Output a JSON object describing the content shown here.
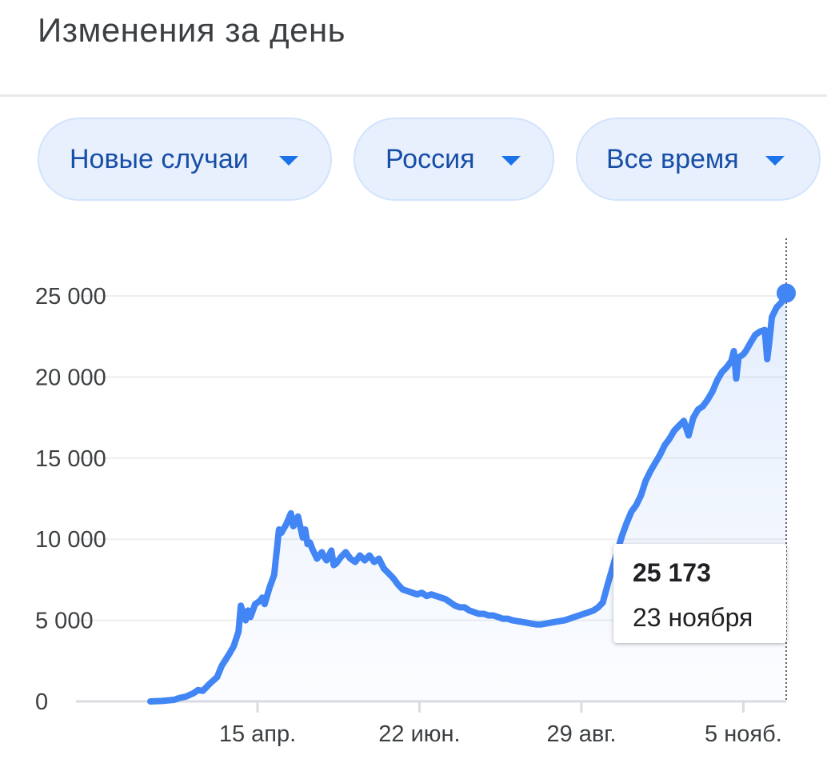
{
  "header": {
    "title": "Изменения за день"
  },
  "filters": {
    "metric": "Новые случаи",
    "region": "Россия",
    "period": "Все время"
  },
  "tooltip": {
    "value": "25 173",
    "date": "23 ноября"
  },
  "colors": {
    "line": "#4285f4",
    "accent": "#1a73e8",
    "chip_bg": "#e8f0fe"
  },
  "icons": {
    "dropdown": "caret-down-icon"
  },
  "chart_data": {
    "type": "line",
    "title": "",
    "xlabel": "",
    "ylabel": "",
    "ylim": [
      0,
      25000
    ],
    "y_ticks": [
      0,
      5000,
      10000,
      15000,
      20000,
      25000
    ],
    "y_tick_labels": [
      "0",
      "5 000",
      "10 000",
      "15 000",
      "20 000",
      "25 000"
    ],
    "x_ticks": [
      {
        "day": 45,
        "label": "15 апр."
      },
      {
        "day": 113,
        "label": "22 июн."
      },
      {
        "day": 181,
        "label": "29 авг."
      },
      {
        "day": 249,
        "label": "5 нояб."
      }
    ],
    "x_range": [
      0,
      267
    ],
    "grid": true,
    "series": [
      {
        "points": [
          [
            0,
            0
          ],
          [
            5,
            30
          ],
          [
            10,
            100
          ],
          [
            12,
            200
          ],
          [
            15,
            300
          ],
          [
            18,
            500
          ],
          [
            20,
            700
          ],
          [
            22,
            650
          ],
          [
            25,
            1100
          ],
          [
            28,
            1500
          ],
          [
            30,
            2200
          ],
          [
            33,
            2900
          ],
          [
            35,
            3400
          ],
          [
            37,
            4300
          ],
          [
            38,
            5900
          ],
          [
            40,
            5000
          ],
          [
            41,
            5600
          ],
          [
            42,
            5200
          ],
          [
            44,
            6000
          ],
          [
            46,
            6200
          ],
          [
            47,
            6400
          ],
          [
            48,
            6000
          ],
          [
            50,
            7000
          ],
          [
            52,
            7800
          ],
          [
            54,
            10600
          ],
          [
            55,
            10400
          ],
          [
            57,
            10900
          ],
          [
            59,
            11600
          ],
          [
            60,
            10800
          ],
          [
            61,
            11000
          ],
          [
            62,
            11400
          ],
          [
            64,
            10100
          ],
          [
            65,
            10600
          ],
          [
            66,
            9700
          ],
          [
            67,
            9800
          ],
          [
            68,
            9400
          ],
          [
            70,
            8800
          ],
          [
            72,
            9200
          ],
          [
            73,
            8900
          ],
          [
            74,
            8700
          ],
          [
            76,
            9300
          ],
          [
            77,
            8400
          ],
          [
            78,
            8500
          ],
          [
            80,
            8900
          ],
          [
            82,
            9200
          ],
          [
            84,
            8800
          ],
          [
            86,
            8600
          ],
          [
            88,
            9000
          ],
          [
            90,
            8700
          ],
          [
            92,
            9000
          ],
          [
            94,
            8600
          ],
          [
            96,
            8800
          ],
          [
            98,
            8200
          ],
          [
            100,
            7900
          ],
          [
            102,
            7600
          ],
          [
            104,
            7200
          ],
          [
            106,
            6900
          ],
          [
            108,
            6800
          ],
          [
            110,
            6700
          ],
          [
            112,
            6600
          ],
          [
            114,
            6700
          ],
          [
            116,
            6500
          ],
          [
            118,
            6600
          ],
          [
            120,
            6500
          ],
          [
            122,
            6400
          ],
          [
            124,
            6300
          ],
          [
            126,
            6100
          ],
          [
            128,
            5900
          ],
          [
            130,
            5800
          ],
          [
            132,
            5800
          ],
          [
            134,
            5600
          ],
          [
            136,
            5500
          ],
          [
            138,
            5400
          ],
          [
            140,
            5400
          ],
          [
            142,
            5300
          ],
          [
            144,
            5300
          ],
          [
            146,
            5200
          ],
          [
            148,
            5100
          ],
          [
            150,
            5100
          ],
          [
            152,
            5000
          ],
          [
            154,
            4950
          ],
          [
            156,
            4900
          ],
          [
            158,
            4850
          ],
          [
            160,
            4800
          ],
          [
            162,
            4750
          ],
          [
            164,
            4750
          ],
          [
            166,
            4800
          ],
          [
            168,
            4850
          ],
          [
            170,
            4900
          ],
          [
            172,
            4950
          ],
          [
            174,
            5000
          ],
          [
            176,
            5100
          ],
          [
            178,
            5200
          ],
          [
            180,
            5300
          ],
          [
            182,
            5400
          ],
          [
            184,
            5500
          ],
          [
            186,
            5600
          ],
          [
            188,
            5800
          ],
          [
            190,
            6100
          ],
          [
            192,
            7200
          ],
          [
            194,
            8200
          ],
          [
            196,
            9200
          ],
          [
            198,
            10200
          ],
          [
            200,
            11000
          ],
          [
            202,
            11700
          ],
          [
            204,
            12100
          ],
          [
            206,
            12700
          ],
          [
            208,
            13600
          ],
          [
            210,
            14200
          ],
          [
            212,
            14700
          ],
          [
            214,
            15200
          ],
          [
            216,
            15800
          ],
          [
            218,
            16200
          ],
          [
            220,
            16700
          ],
          [
            222,
            17000
          ],
          [
            224,
            17300
          ],
          [
            226,
            16400
          ],
          [
            228,
            17500
          ],
          [
            230,
            18000
          ],
          [
            232,
            18200
          ],
          [
            234,
            18600
          ],
          [
            236,
            19100
          ],
          [
            238,
            19800
          ],
          [
            240,
            20300
          ],
          [
            242,
            20600
          ],
          [
            244,
            21000
          ],
          [
            245,
            21600
          ],
          [
            246,
            19900
          ],
          [
            247,
            21200
          ],
          [
            249,
            21400
          ],
          [
            250,
            21600
          ],
          [
            252,
            22100
          ],
          [
            254,
            22600
          ],
          [
            256,
            22800
          ],
          [
            258,
            22900
          ],
          [
            259,
            21100
          ],
          [
            260,
            22300
          ],
          [
            261,
            23700
          ],
          [
            263,
            24300
          ],
          [
            265,
            24600
          ],
          [
            267,
            25173
          ]
        ]
      }
    ],
    "highlight": {
      "day": 267,
      "value": 25173
    }
  }
}
